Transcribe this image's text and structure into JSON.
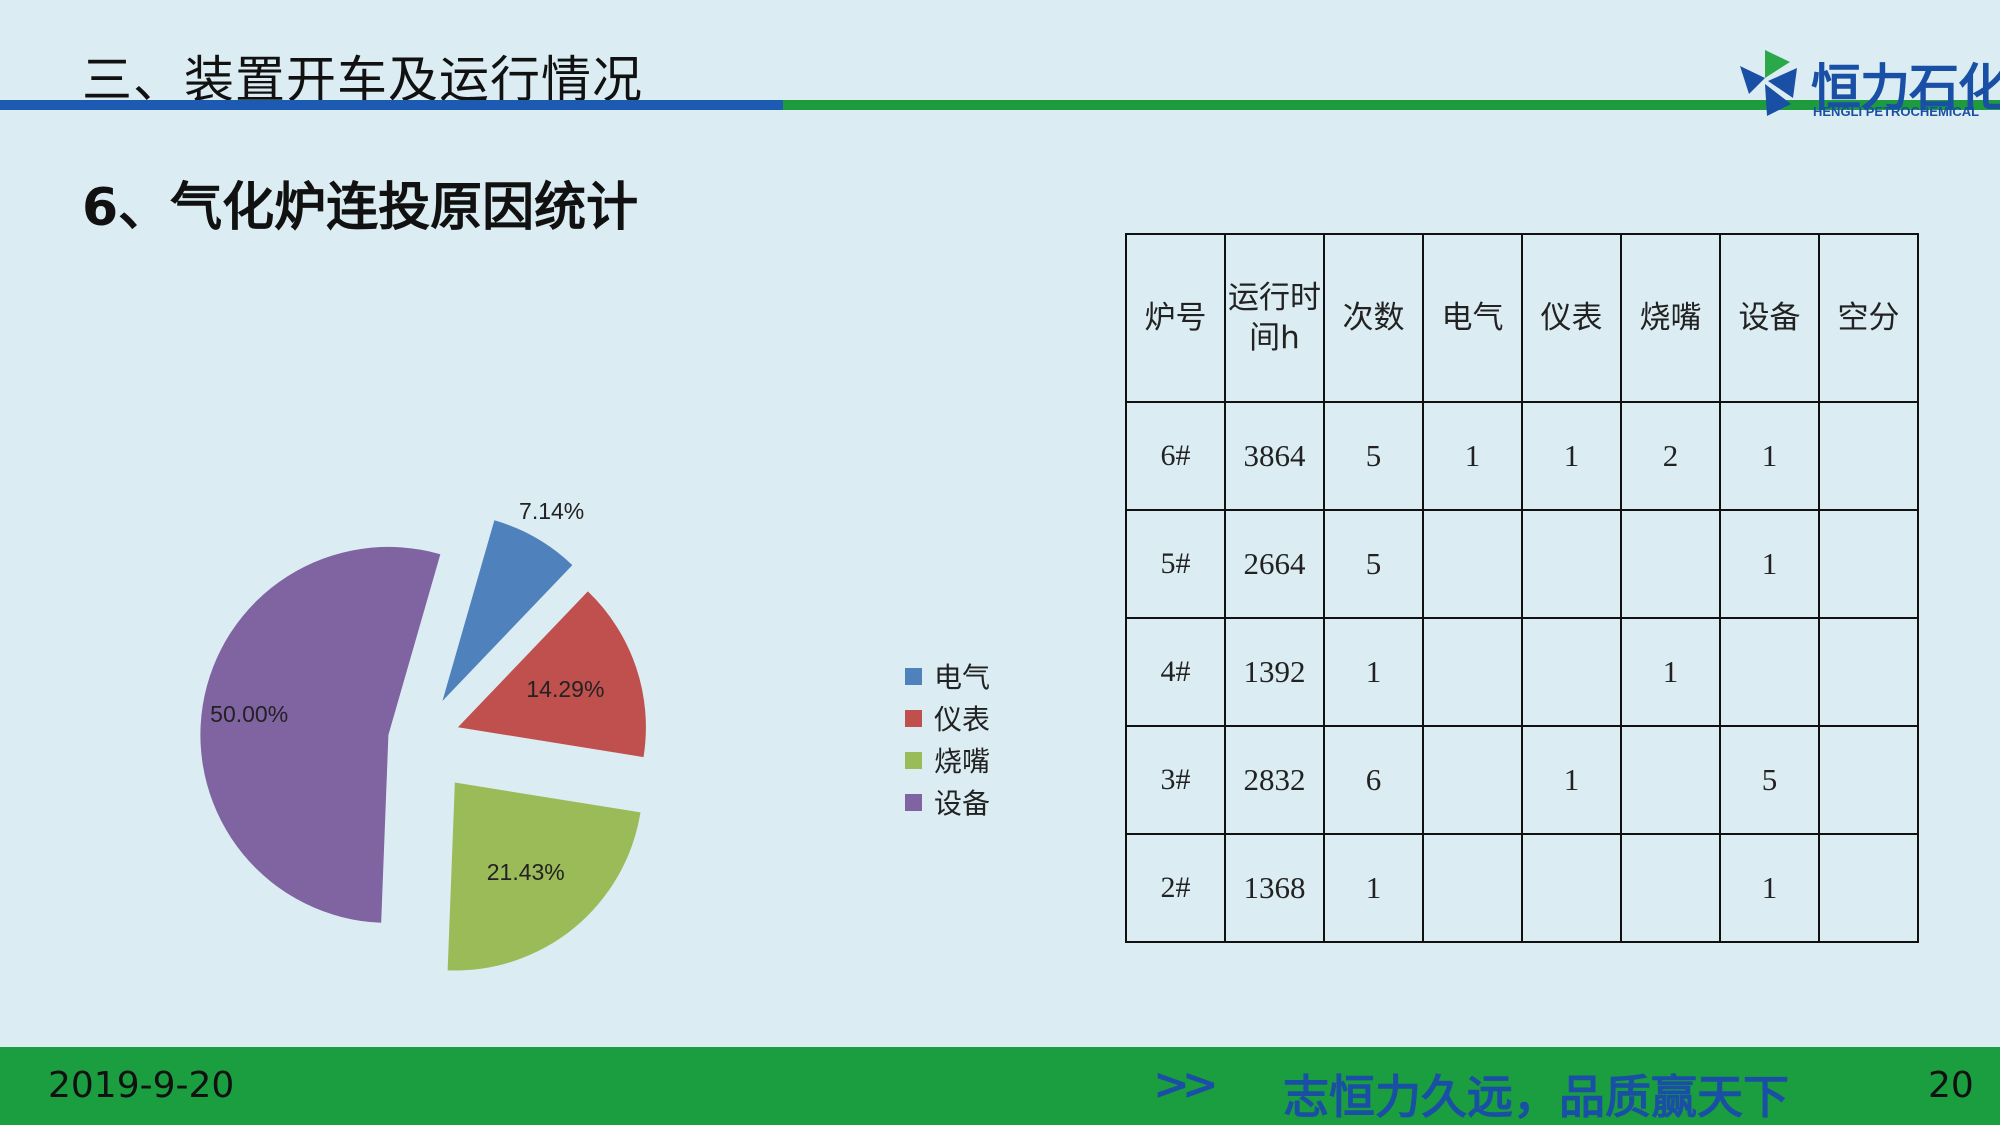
{
  "header": {
    "title": "三、装置开车及运行情况",
    "logo_cn": "恒力石化",
    "logo_en": "HENGLI PETROCHEMICAL"
  },
  "section": {
    "title": "6、气化炉连投原因统计"
  },
  "chart_data": {
    "type": "pie",
    "categories": [
      "电气",
      "仪表",
      "烧嘴",
      "设备"
    ],
    "values": [
      7.14,
      14.29,
      21.43,
      50.0
    ],
    "labels": [
      "7.14%",
      "14.29%",
      "21.43%",
      "50.00%"
    ],
    "colors": [
      "#4f81bd",
      "#c0504d",
      "#9bbb59",
      "#8064a2"
    ],
    "legend_position": "right",
    "exploded": true
  },
  "table": {
    "headers": [
      "炉号",
      "运行时间h",
      "次数",
      "电气",
      "仪表",
      "烧嘴",
      "设备",
      "空分"
    ],
    "rows": [
      [
        "6#",
        "3864",
        "5",
        "1",
        "1",
        "2",
        "1",
        ""
      ],
      [
        "5#",
        "2664",
        "5",
        "",
        "",
        "",
        "1",
        ""
      ],
      [
        "4#",
        "1392",
        "1",
        "",
        "",
        "1",
        "",
        ""
      ],
      [
        "3#",
        "2832",
        "6",
        "",
        "1",
        "",
        "5",
        ""
      ],
      [
        "2#",
        "1368",
        "1",
        "",
        "",
        "",
        "1",
        ""
      ]
    ]
  },
  "footer": {
    "date": "2019-9-20",
    "arrows": ">>",
    "slogan": "志恒力久远，品质赢天下",
    "page": "20"
  }
}
